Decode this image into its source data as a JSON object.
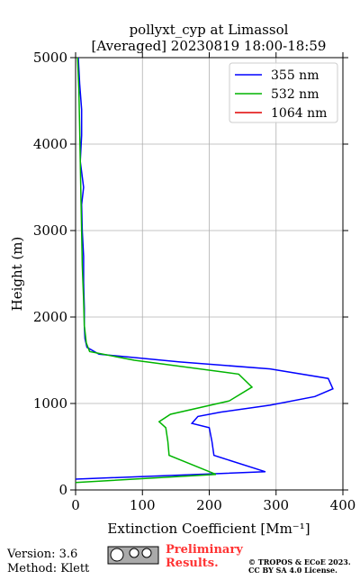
{
  "chart_data": {
    "type": "line",
    "orientation": "profile",
    "title": "pollyxt_cyp at Limassol",
    "subtitle": "[Averaged] 20230819 18:00-18:59",
    "xlabel": "Extinction Coefficient [Mm⁻¹]",
    "ylabel": "Height (m)",
    "xlim": [
      0,
      400
    ],
    "xticks": [
      0,
      100,
      200,
      300,
      400
    ],
    "ylim": [
      0,
      5000
    ],
    "yticks": [
      0,
      1000,
      2000,
      3000,
      4000,
      5000
    ],
    "grid": true,
    "legend": "upper right",
    "series": [
      {
        "name": "355 nm",
        "color": "#0000ff",
        "heights": [
          125,
          210,
          400,
          560,
          720,
          770,
          850,
          900,
          980,
          1080,
          1170,
          1290,
          1400,
          1480,
          1570,
          1650,
          1750,
          1900,
          2100,
          2400,
          2700,
          3000,
          3300,
          3500,
          3800,
          4100,
          4400,
          4700,
          5000
        ],
        "values": [
          0,
          284,
          207,
          204,
          200,
          174,
          183,
          217,
          291,
          358,
          385,
          378,
          291,
          156,
          35,
          17,
          14,
          13,
          13,
          12,
          12,
          10,
          9,
          12,
          7,
          9,
          9,
          6,
          4
        ]
      },
      {
        "name": "532 nm",
        "color": "#00b400",
        "heights": [
          85,
          180,
          400,
          560,
          720,
          790,
          875,
          1030,
          1190,
          1340,
          1500,
          1600,
          1700,
          1900,
          2200,
          2600,
          3000,
          3400,
          3800,
          4200,
          4600,
          5000
        ],
        "values": [
          0,
          210,
          140,
          138,
          135,
          125,
          142,
          230,
          264,
          244,
          88,
          21,
          16,
          13,
          12,
          10,
          9,
          8,
          7,
          6,
          5,
          3
        ]
      },
      {
        "name": "1064 nm",
        "color": "#e00000",
        "heights": [],
        "values": []
      }
    ]
  },
  "footer": {
    "version": "Version: 3.6",
    "method": "Method: Klett",
    "preliminary": [
      "Preliminary",
      "Results."
    ],
    "copyright": [
      "© TROPOS & ECoE 2023.",
      "CC BY SA 4.0 License."
    ]
  }
}
